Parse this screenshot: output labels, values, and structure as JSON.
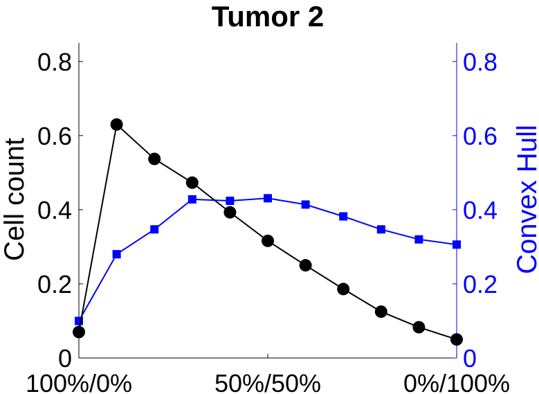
{
  "chart_data": {
    "type": "line",
    "title": "Tumor 2",
    "xlim": [
      0,
      1
    ],
    "x_ticks": [
      {
        "value": 0,
        "label": "100%/0%"
      },
      {
        "value": 0.5,
        "label": "50%/50%"
      },
      {
        "value": 1,
        "label": "0%/100%"
      }
    ],
    "x": [
      0,
      0.1,
      0.2,
      0.3,
      0.4,
      0.5,
      0.6,
      0.7,
      0.8,
      0.9,
      1.0
    ],
    "left_axis": {
      "label": "Cell count",
      "ylim": [
        0,
        0.85
      ],
      "ticks": [
        0,
        0.2,
        0.4,
        0.6,
        0.8
      ],
      "tick_labels": [
        "0",
        "0.2",
        "0.4",
        "0.6",
        "0.8"
      ],
      "color": "#000000"
    },
    "right_axis": {
      "label": "Convex Hull",
      "ylim": [
        0,
        0.85
      ],
      "ticks": [
        0,
        0.2,
        0.4,
        0.6,
        0.8
      ],
      "tick_labels": [
        "0",
        "0.2",
        "0.4",
        "0.6",
        "0.8"
      ],
      "color": "#0000ff"
    },
    "series": [
      {
        "axis": "left",
        "marker": "circle",
        "color": "#000000",
        "values": [
          0.07,
          0.63,
          0.537,
          0.473,
          0.393,
          0.316,
          0.25,
          0.186,
          0.125,
          0.083,
          0.05
        ]
      },
      {
        "axis": "right",
        "marker": "square",
        "color": "#0000ff",
        "values": [
          0.1,
          0.28,
          0.347,
          0.428,
          0.424,
          0.431,
          0.414,
          0.382,
          0.347,
          0.32,
          0.306
        ]
      }
    ],
    "grid": false,
    "legend": "none"
  }
}
